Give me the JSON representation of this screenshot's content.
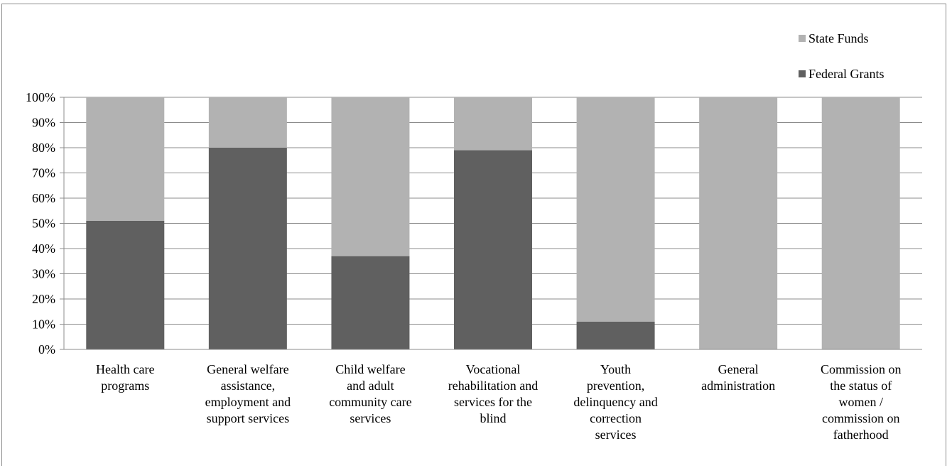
{
  "chart_data": {
    "type": "bar",
    "stacked": true,
    "title": "",
    "xlabel": "",
    "ylabel": "",
    "ylim": [
      0,
      100
    ],
    "y_tick_labels": [
      "0%",
      "10%",
      "20%",
      "30%",
      "40%",
      "50%",
      "60%",
      "70%",
      "80%",
      "90%",
      "100%"
    ],
    "categories": [
      [
        "Health care",
        "programs"
      ],
      [
        "General welfare",
        "assistance,",
        "employment and",
        "support services"
      ],
      [
        "Child welfare",
        "and adult",
        "community care",
        "services"
      ],
      [
        "Vocational",
        "rehabilitation and",
        "services for the",
        "blind"
      ],
      [
        "Youth",
        "prevention,",
        "delinquency and",
        "correction",
        "services"
      ],
      [
        "General",
        "administration"
      ],
      [
        "Commission on",
        "the status of",
        "women /",
        "commission on",
        "fatherhood"
      ]
    ],
    "series": [
      {
        "name": "Federal Grants",
        "color": "#606060",
        "values": [
          51,
          80,
          37,
          79,
          11,
          0,
          0
        ]
      },
      {
        "name": "State Funds",
        "color": "#b2b2b2",
        "values": [
          49,
          20,
          63,
          21,
          89,
          100,
          100
        ]
      }
    ],
    "grid": true,
    "legend_position": "top-right"
  }
}
